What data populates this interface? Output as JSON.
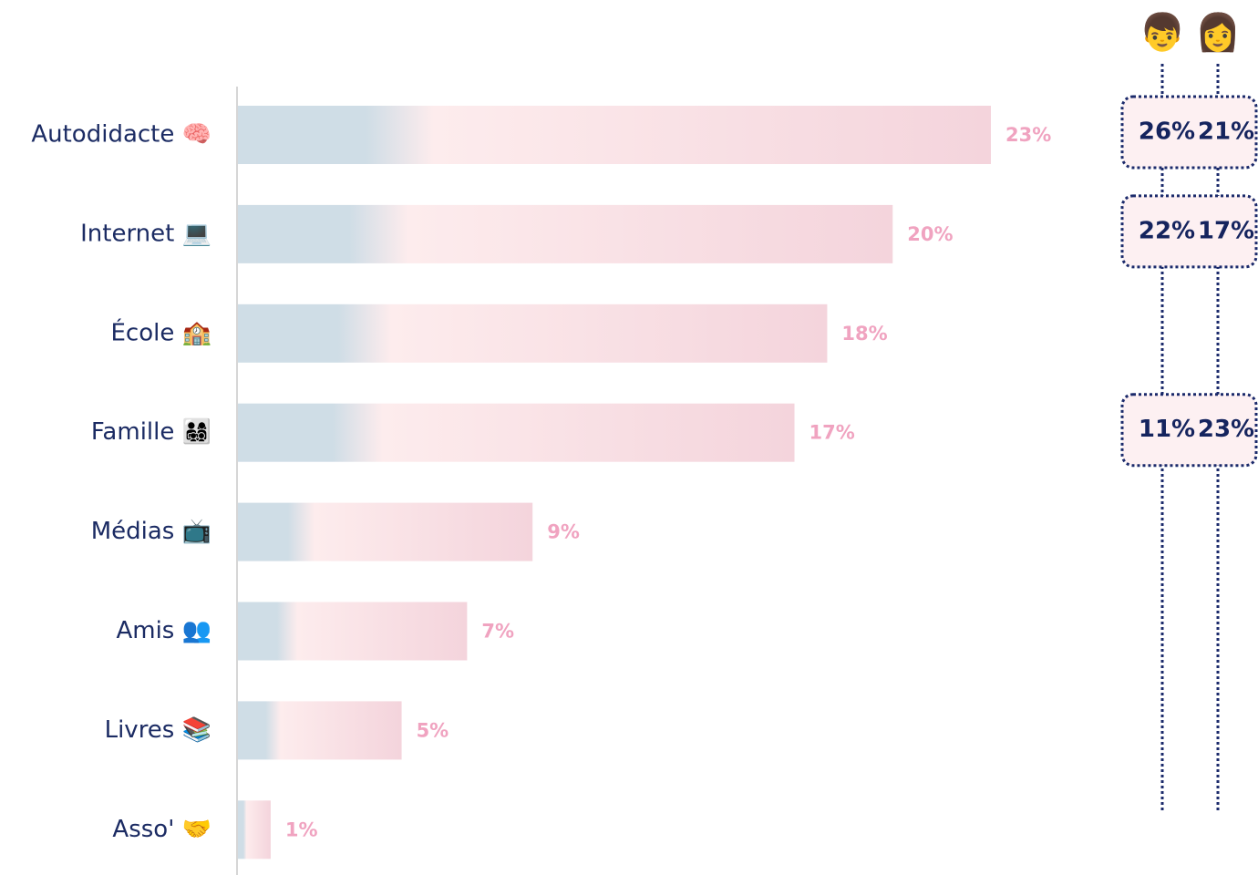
{
  "chart_data": {
    "type": "bar",
    "orientation": "horizontal",
    "categories": [
      "Autodidacte 🧠",
      "Internet 💻",
      "École 🏫",
      "Famille 👨‍👩‍👧‍👦",
      "Médias 📺",
      "Amis 👥",
      "Livres 📚",
      "Asso' 🤝"
    ],
    "values": [
      23,
      20,
      18,
      17,
      9,
      7,
      5,
      1
    ],
    "value_labels": [
      "23%",
      "20%",
      "18%",
      "17%",
      "9%",
      "7%",
      "5%",
      "1%"
    ],
    "color_start": "#cfdde6",
    "color_end": "#f4d4dc",
    "label_color": "#f0a3c0",
    "breakdown": {
      "series": [
        {
          "name": "👦",
          "values": [
            26,
            22,
            null,
            11,
            null,
            null,
            null,
            null
          ],
          "value_labels": [
            "26%",
            "22%",
            null,
            "11%",
            null,
            null,
            null,
            null
          ]
        },
        {
          "name": "👩",
          "values": [
            21,
            17,
            null,
            23,
            null,
            null,
            null,
            null
          ],
          "value_labels": [
            "21%",
            "17%",
            null,
            "23%",
            null,
            null,
            null,
            null
          ]
        }
      ]
    }
  }
}
